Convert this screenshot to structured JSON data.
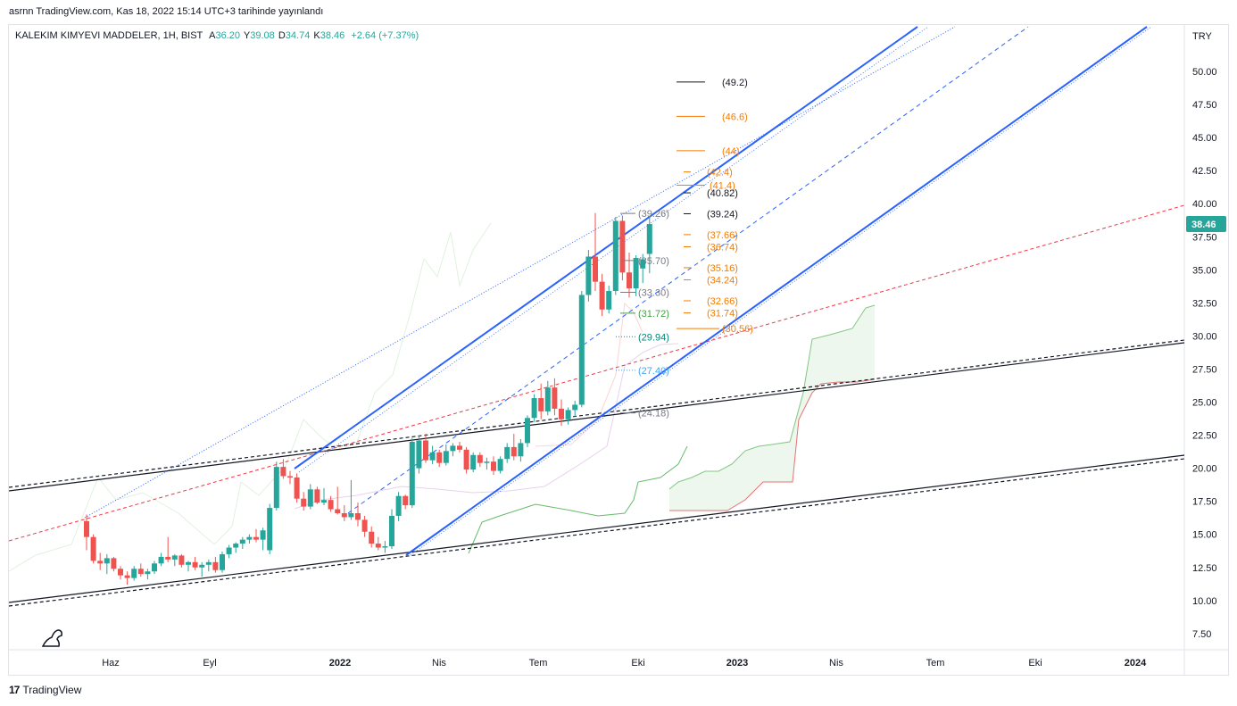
{
  "header": {
    "published_by": "asrnn TradingView.com, Kas 18, 2022 15:14 UTC+3 tarihinde yayınlandı"
  },
  "legend": {
    "symbol": "KALEKIM KIMYEVI MADDELER, 1H, BIST",
    "open_label": "A",
    "open": "36.20",
    "high_label": "Y",
    "high": "39.08",
    "low_label": "D",
    "low": "34.74",
    "close_label": "K",
    "close": "38.46",
    "change": "+2.64 (+7.37%)"
  },
  "footer": {
    "brand": "TradingView",
    "logo": "17"
  },
  "colors": {
    "up": "#26a69a",
    "down": "#ef5350",
    "channel": "#2962ff",
    "fib_orange": "#f57c00",
    "trend_red": "#f23645",
    "cloud_green": "#4caf50",
    "cloud_red": "#f44336"
  },
  "chart_data": {
    "type": "candlestick",
    "currency": "TRY",
    "last_price": "38.46",
    "ylim": [
      6.5,
      53
    ],
    "y_ticks": [
      "50.00",
      "47.50",
      "45.00",
      "42.50",
      "40.00",
      "37.50",
      "35.00",
      "32.50",
      "30.00",
      "27.50",
      "25.00",
      "22.50",
      "20.00",
      "17.50",
      "15.00",
      "12.50",
      "10.00",
      "7.50"
    ],
    "x_ticks": [
      "Haz",
      "Eyl",
      "2022",
      "Nis",
      "Tem",
      "Eki",
      "2023",
      "Nis",
      "Tem",
      "Eki",
      "2024"
    ],
    "candles": [
      {
        "t": 1,
        "o": 16.0,
        "h": 16.5,
        "l": 13.8,
        "c": 14.8
      },
      {
        "t": 2,
        "o": 14.8,
        "h": 15.0,
        "l": 12.8,
        "c": 13.0
      },
      {
        "t": 3,
        "o": 13.0,
        "h": 13.6,
        "l": 12.3,
        "c": 12.8
      },
      {
        "t": 4,
        "o": 12.8,
        "h": 13.5,
        "l": 12.0,
        "c": 13.2
      },
      {
        "t": 5,
        "o": 13.2,
        "h": 13.3,
        "l": 12.2,
        "c": 12.4
      },
      {
        "t": 6,
        "o": 12.4,
        "h": 12.6,
        "l": 11.6,
        "c": 11.9
      },
      {
        "t": 7,
        "o": 11.9,
        "h": 12.2,
        "l": 11.2,
        "c": 11.7
      },
      {
        "t": 8,
        "o": 11.7,
        "h": 12.6,
        "l": 11.5,
        "c": 12.4
      },
      {
        "t": 9,
        "o": 12.4,
        "h": 12.8,
        "l": 11.8,
        "c": 12.0
      },
      {
        "t": 10,
        "o": 12.0,
        "h": 12.4,
        "l": 11.6,
        "c": 12.2
      },
      {
        "t": 11,
        "o": 12.2,
        "h": 13.0,
        "l": 12.0,
        "c": 12.8
      },
      {
        "t": 12,
        "o": 12.8,
        "h": 13.6,
        "l": 12.6,
        "c": 13.3
      },
      {
        "t": 13,
        "o": 13.3,
        "h": 14.8,
        "l": 12.9,
        "c": 13.1
      },
      {
        "t": 14,
        "o": 13.1,
        "h": 13.5,
        "l": 12.6,
        "c": 13.4
      },
      {
        "t": 15,
        "o": 13.4,
        "h": 13.5,
        "l": 12.5,
        "c": 12.7
      },
      {
        "t": 16,
        "o": 12.7,
        "h": 13.0,
        "l": 12.2,
        "c": 12.9
      },
      {
        "t": 17,
        "o": 12.9,
        "h": 13.3,
        "l": 12.3,
        "c": 12.5
      },
      {
        "t": 18,
        "o": 12.5,
        "h": 12.9,
        "l": 11.8,
        "c": 12.7
      },
      {
        "t": 19,
        "o": 12.7,
        "h": 13.1,
        "l": 12.2,
        "c": 12.9
      },
      {
        "t": 20,
        "o": 12.9,
        "h": 13.3,
        "l": 12.1,
        "c": 12.3
      },
      {
        "t": 21,
        "o": 12.3,
        "h": 13.7,
        "l": 12.1,
        "c": 13.5
      },
      {
        "t": 22,
        "o": 13.5,
        "h": 14.2,
        "l": 13.2,
        "c": 14.0
      },
      {
        "t": 23,
        "o": 14.0,
        "h": 14.4,
        "l": 13.6,
        "c": 14.3
      },
      {
        "t": 24,
        "o": 14.3,
        "h": 14.8,
        "l": 13.9,
        "c": 14.6
      },
      {
        "t": 25,
        "o": 14.6,
        "h": 15.0,
        "l": 14.3,
        "c": 14.8
      },
      {
        "t": 26,
        "o": 14.8,
        "h": 15.4,
        "l": 14.4,
        "c": 14.6
      },
      {
        "t": 27,
        "o": 14.6,
        "h": 15.5,
        "l": 13.8,
        "c": 15.3
      },
      {
        "t": 28,
        "o": 13.8,
        "h": 17.3,
        "l": 13.5,
        "c": 17.0
      },
      {
        "t": 29,
        "o": 17.0,
        "h": 20.5,
        "l": 16.8,
        "c": 20.1
      },
      {
        "t": 30,
        "o": 20.1,
        "h": 20.7,
        "l": 19.2,
        "c": 19.4
      },
      {
        "t": 31,
        "o": 19.4,
        "h": 19.8,
        "l": 18.8,
        "c": 19.3
      },
      {
        "t": 32,
        "o": 19.3,
        "h": 19.6,
        "l": 17.4,
        "c": 17.7
      },
      {
        "t": 33,
        "o": 17.7,
        "h": 18.2,
        "l": 16.8,
        "c": 17.1
      },
      {
        "t": 34,
        "o": 17.1,
        "h": 18.8,
        "l": 16.9,
        "c": 18.4
      },
      {
        "t": 35,
        "o": 18.4,
        "h": 18.6,
        "l": 17.3,
        "c": 17.4
      },
      {
        "t": 36,
        "o": 17.4,
        "h": 18.5,
        "l": 17.2,
        "c": 17.6
      },
      {
        "t": 37,
        "o": 17.6,
        "h": 17.9,
        "l": 16.7,
        "c": 16.9
      },
      {
        "t": 38,
        "o": 16.9,
        "h": 18.6,
        "l": 16.5,
        "c": 16.6
      },
      {
        "t": 39,
        "o": 16.6,
        "h": 17.2,
        "l": 16.0,
        "c": 16.3
      },
      {
        "t": 40,
        "o": 16.3,
        "h": 19.1,
        "l": 16.1,
        "c": 16.6
      },
      {
        "t": 41,
        "o": 16.6,
        "h": 17.4,
        "l": 15.6,
        "c": 16.1
      },
      {
        "t": 42,
        "o": 16.1,
        "h": 16.4,
        "l": 14.8,
        "c": 15.2
      },
      {
        "t": 43,
        "o": 15.2,
        "h": 15.6,
        "l": 14.0,
        "c": 14.3
      },
      {
        "t": 44,
        "o": 14.3,
        "h": 14.8,
        "l": 13.8,
        "c": 14.0
      },
      {
        "t": 45,
        "o": 14.0,
        "h": 14.5,
        "l": 13.6,
        "c": 14.1
      },
      {
        "t": 46,
        "o": 14.1,
        "h": 16.9,
        "l": 13.9,
        "c": 16.4
      },
      {
        "t": 47,
        "o": 16.4,
        "h": 18.2,
        "l": 16.0,
        "c": 17.9
      },
      {
        "t": 48,
        "o": 17.9,
        "h": 18.0,
        "l": 16.9,
        "c": 17.2
      },
      {
        "t": 49,
        "o": 17.2,
        "h": 22.3,
        "l": 17.0,
        "c": 22.0
      },
      {
        "t": 50,
        "o": 20.0,
        "h": 22.5,
        "l": 19.6,
        "c": 22.1
      },
      {
        "t": 51,
        "o": 22.1,
        "h": 22.6,
        "l": 20.4,
        "c": 20.6
      },
      {
        "t": 52,
        "o": 20.6,
        "h": 21.7,
        "l": 20.3,
        "c": 21.2
      },
      {
        "t": 53,
        "o": 21.2,
        "h": 21.4,
        "l": 20.1,
        "c": 20.4
      },
      {
        "t": 54,
        "o": 20.4,
        "h": 21.8,
        "l": 20.2,
        "c": 21.3
      },
      {
        "t": 55,
        "o": 21.3,
        "h": 21.9,
        "l": 20.9,
        "c": 21.7
      },
      {
        "t": 56,
        "o": 21.7,
        "h": 22.0,
        "l": 21.2,
        "c": 21.4
      },
      {
        "t": 57,
        "o": 21.4,
        "h": 21.6,
        "l": 19.6,
        "c": 19.9
      },
      {
        "t": 58,
        "o": 19.9,
        "h": 21.2,
        "l": 19.7,
        "c": 21.0
      },
      {
        "t": 59,
        "o": 21.0,
        "h": 21.2,
        "l": 20.1,
        "c": 20.4
      },
      {
        "t": 60,
        "o": 20.4,
        "h": 20.8,
        "l": 19.9,
        "c": 20.5
      },
      {
        "t": 61,
        "o": 20.5,
        "h": 20.9,
        "l": 19.5,
        "c": 19.8
      },
      {
        "t": 62,
        "o": 19.8,
        "h": 20.9,
        "l": 19.6,
        "c": 20.7
      },
      {
        "t": 63,
        "o": 20.7,
        "h": 21.9,
        "l": 20.4,
        "c": 21.6
      },
      {
        "t": 64,
        "o": 21.6,
        "h": 22.6,
        "l": 20.6,
        "c": 20.9
      },
      {
        "t": 65,
        "o": 20.9,
        "h": 22.2,
        "l": 20.5,
        "c": 21.9
      },
      {
        "t": 66,
        "o": 21.9,
        "h": 24.0,
        "l": 21.6,
        "c": 23.8
      },
      {
        "t": 67,
        "o": 23.8,
        "h": 25.6,
        "l": 23.5,
        "c": 25.3
      },
      {
        "t": 68,
        "o": 25.3,
        "h": 26.4,
        "l": 23.7,
        "c": 24.3
      },
      {
        "t": 69,
        "o": 24.3,
        "h": 26.6,
        "l": 24.0,
        "c": 26.1
      },
      {
        "t": 70,
        "o": 26.1,
        "h": 26.8,
        "l": 24.0,
        "c": 24.5
      },
      {
        "t": 71,
        "o": 24.5,
        "h": 25.2,
        "l": 23.2,
        "c": 23.7
      },
      {
        "t": 72,
        "o": 23.7,
        "h": 24.6,
        "l": 23.3,
        "c": 24.4
      },
      {
        "t": 73,
        "o": 24.4,
        "h": 25.1,
        "l": 23.9,
        "c": 24.8
      },
      {
        "t": 74,
        "o": 24.8,
        "h": 33.4,
        "l": 24.6,
        "c": 33.1
      },
      {
        "t": 75,
        "o": 33.1,
        "h": 36.5,
        "l": 32.6,
        "c": 36.0
      },
      {
        "t": 76,
        "o": 36.0,
        "h": 39.3,
        "l": 33.4,
        "c": 34.1
      },
      {
        "t": 77,
        "o": 34.1,
        "h": 34.7,
        "l": 31.5,
        "c": 32.0
      },
      {
        "t": 78,
        "o": 32.0,
        "h": 33.8,
        "l": 31.7,
        "c": 33.4
      },
      {
        "t": 79,
        "o": 33.4,
        "h": 39.0,
        "l": 33.1,
        "c": 38.7
      },
      {
        "t": 80,
        "o": 38.7,
        "h": 39.1,
        "l": 34.2,
        "c": 34.8
      },
      {
        "t": 81,
        "o": 34.8,
        "h": 36.3,
        "l": 32.9,
        "c": 33.6
      },
      {
        "t": 82,
        "o": 33.6,
        "h": 36.1,
        "l": 33.0,
        "c": 35.9
      },
      {
        "t": 83,
        "o": 35.1,
        "h": 36.2,
        "l": 34.0,
        "c": 35.8
      },
      {
        "t": 84,
        "o": 36.2,
        "h": 39.08,
        "l": 34.74,
        "c": 38.46
      }
    ],
    "fib_levels": [
      {
        "label": "(49.2)",
        "value": 49.2,
        "color": "#131722"
      },
      {
        "label": "(46.6)",
        "value": 46.6,
        "color": "#f57c00"
      },
      {
        "label": "(44)",
        "value": 44.0,
        "color": "#f57c00"
      },
      {
        "label": "(42.4)",
        "value": 42.4,
        "color": "#f57c00"
      },
      {
        "label": "(41.4)",
        "value": 41.4,
        "color": "#f57c00"
      },
      {
        "label": "(40.82)",
        "value": 40.82,
        "color": "#131722"
      },
      {
        "label": "(39.26)",
        "value": 39.26,
        "color": "#787b86"
      },
      {
        "label": "(39.24)",
        "value": 39.24,
        "color": "#131722"
      },
      {
        "label": "(37.66)",
        "value": 37.66,
        "color": "#f57c00"
      },
      {
        "label": "(36.74)",
        "value": 36.74,
        "color": "#f57c00"
      },
      {
        "label": "(35.70)",
        "value": 35.7,
        "color": "#787b86"
      },
      {
        "label": "(35.16)",
        "value": 35.16,
        "color": "#f57c00"
      },
      {
        "label": "(34.24)",
        "value": 34.24,
        "color": "#f57c00"
      },
      {
        "label": "(33.30)",
        "value": 33.3,
        "color": "#787b86"
      },
      {
        "label": "(32.66)",
        "value": 32.66,
        "color": "#f57c00"
      },
      {
        "label": "(31.74)",
        "value": 31.74,
        "color": "#f57c00"
      },
      {
        "label": "(31.72)",
        "value": 31.72,
        "color": "#43a047"
      },
      {
        "label": "(30.56)",
        "value": 30.56,
        "color": "#f57c00"
      },
      {
        "label": "(29.94)",
        "value": 29.94,
        "color": "#00897b"
      },
      {
        "label": "(27.40)",
        "value": 27.4,
        "color": "#42a5f5"
      },
      {
        "label": "(24.18)",
        "value": 24.18,
        "color": "#787b86"
      }
    ]
  }
}
